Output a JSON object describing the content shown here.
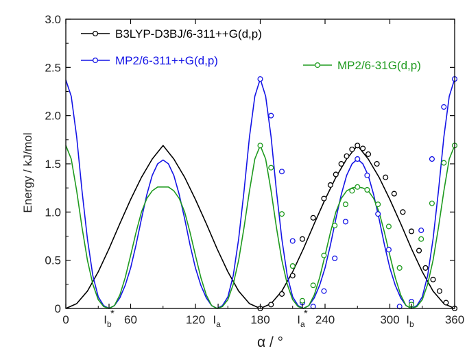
{
  "chart_data": {
    "type": "line",
    "xlabel": "α / °",
    "ylabel": "Energy / kJ/mol",
    "xlim": [
      0,
      360
    ],
    "ylim": [
      0,
      3.0
    ],
    "x_ticks": [
      "0",
      "60",
      "120",
      "180",
      "240",
      "300",
      "360"
    ],
    "x_tick_values": [
      0,
      60,
      120,
      180,
      240,
      300,
      360
    ],
    "y_ticks": [
      "0",
      "0.5",
      "1.0",
      "1.5",
      "2.0",
      "2.5",
      "3.0"
    ],
    "y_tick_values": [
      0,
      0.5,
      1.0,
      1.5,
      2.0,
      2.5,
      3.0
    ],
    "x_annotations": [
      {
        "label": "I",
        "sub": "b",
        "sup": "*",
        "x": 40
      },
      {
        "label": "I",
        "sub": "a",
        "sup": "",
        "x": 141
      },
      {
        "label": "I",
        "sub": "a",
        "sup": "*",
        "x": 219
      },
      {
        "label": "I",
        "sub": "b",
        "sup": "",
        "x": 320
      }
    ],
    "legend_position": "top-left",
    "grid": false,
    "series": [
      {
        "name": "B3LYP-D3BJ/6-311++G(d,p)",
        "color": "#000000",
        "curve": [
          [
            0,
            0
          ],
          [
            10,
            0.05
          ],
          [
            20,
            0.18
          ],
          [
            30,
            0.38
          ],
          [
            40,
            0.62
          ],
          [
            50,
            0.88
          ],
          [
            60,
            1.13
          ],
          [
            70,
            1.36
          ],
          [
            80,
            1.55
          ],
          [
            90,
            1.69
          ],
          [
            100,
            1.55
          ],
          [
            110,
            1.36
          ],
          [
            120,
            1.13
          ],
          [
            130,
            0.88
          ],
          [
            140,
            0.62
          ],
          [
            150,
            0.38
          ],
          [
            160,
            0.18
          ],
          [
            170,
            0.05
          ],
          [
            180,
            0
          ],
          [
            190,
            0.05
          ],
          [
            200,
            0.18
          ],
          [
            210,
            0.38
          ],
          [
            220,
            0.62
          ],
          [
            230,
            0.88
          ],
          [
            240,
            1.13
          ],
          [
            250,
            1.36
          ],
          [
            260,
            1.55
          ],
          [
            270,
            1.69
          ],
          [
            280,
            1.55
          ],
          [
            290,
            1.36
          ],
          [
            300,
            1.13
          ],
          [
            310,
            0.88
          ],
          [
            320,
            0.62
          ],
          [
            330,
            0.38
          ],
          [
            340,
            0.18
          ],
          [
            350,
            0.05
          ],
          [
            360,
            0
          ]
        ],
        "points": [
          [
            180,
            0
          ],
          [
            190,
            0.04
          ],
          [
            200,
            0.15
          ],
          [
            210,
            0.34
          ],
          [
            219,
            0.72
          ],
          [
            229,
            0.94
          ],
          [
            239,
            1.14
          ],
          [
            245,
            1.28
          ],
          [
            250,
            1.39
          ],
          [
            255,
            1.5
          ],
          [
            260,
            1.58
          ],
          [
            265,
            1.65
          ],
          [
            270,
            1.69
          ],
          [
            275,
            1.66
          ],
          [
            280,
            1.6
          ],
          [
            288,
            1.5
          ],
          [
            296,
            1.36
          ],
          [
            304,
            1.19
          ],
          [
            312,
            1.0
          ],
          [
            320,
            0.8
          ],
          [
            327,
            0.6
          ],
          [
            333,
            0.42
          ],
          [
            340,
            0.3
          ],
          [
            346,
            0.18
          ],
          [
            352,
            0.06
          ],
          [
            360,
            0
          ]
        ]
      },
      {
        "name": "MP2/6-311++G(d,p)",
        "color": "#1414e6",
        "curve": [
          [
            0,
            2.37
          ],
          [
            5,
            2.2
          ],
          [
            10,
            1.78
          ],
          [
            15,
            1.22
          ],
          [
            20,
            0.72
          ],
          [
            25,
            0.34
          ],
          [
            30,
            0.12
          ],
          [
            35,
            0.03
          ],
          [
            40,
            0
          ],
          [
            45,
            0.03
          ],
          [
            50,
            0.11
          ],
          [
            55,
            0.24
          ],
          [
            60,
            0.42
          ],
          [
            65,
            0.66
          ],
          [
            70,
            0.93
          ],
          [
            75,
            1.18
          ],
          [
            80,
            1.38
          ],
          [
            85,
            1.5
          ],
          [
            90,
            1.54
          ],
          [
            95,
            1.5
          ],
          [
            100,
            1.38
          ],
          [
            105,
            1.18
          ],
          [
            110,
            0.93
          ],
          [
            115,
            0.66
          ],
          [
            120,
            0.42
          ],
          [
            125,
            0.24
          ],
          [
            130,
            0.11
          ],
          [
            135,
            0.03
          ],
          [
            140,
            0
          ],
          [
            145,
            0.03
          ],
          [
            150,
            0.12
          ],
          [
            155,
            0.34
          ],
          [
            160,
            0.72
          ],
          [
            165,
            1.22
          ],
          [
            170,
            1.78
          ],
          [
            175,
            2.2
          ],
          [
            180,
            2.38
          ],
          [
            185,
            2.2
          ],
          [
            190,
            1.78
          ],
          [
            195,
            1.22
          ],
          [
            200,
            0.72
          ],
          [
            205,
            0.34
          ],
          [
            210,
            0.12
          ],
          [
            215,
            0.03
          ],
          [
            220,
            0
          ],
          [
            225,
            0.03
          ],
          [
            230,
            0.11
          ],
          [
            235,
            0.24
          ],
          [
            240,
            0.42
          ],
          [
            245,
            0.66
          ],
          [
            250,
            0.93
          ],
          [
            255,
            1.18
          ],
          [
            260,
            1.38
          ],
          [
            265,
            1.5
          ],
          [
            270,
            1.55
          ],
          [
            275,
            1.5
          ],
          [
            280,
            1.38
          ],
          [
            285,
            1.18
          ],
          [
            290,
            0.93
          ],
          [
            295,
            0.66
          ],
          [
            300,
            0.42
          ],
          [
            305,
            0.24
          ],
          [
            310,
            0.11
          ],
          [
            315,
            0.03
          ],
          [
            320,
            0
          ],
          [
            325,
            0.03
          ],
          [
            330,
            0.12
          ],
          [
            335,
            0.34
          ],
          [
            340,
            0.72
          ],
          [
            345,
            1.22
          ],
          [
            350,
            1.78
          ],
          [
            355,
            2.2
          ],
          [
            360,
            2.38
          ]
        ],
        "points": [
          [
            180,
            2.38
          ],
          [
            190,
            2.0
          ],
          [
            200,
            1.42
          ],
          [
            210,
            0.7
          ],
          [
            219,
            0.06
          ],
          [
            229,
            0.02
          ],
          [
            239,
            0.18
          ],
          [
            249,
            0.52
          ],
          [
            259,
            0.9
          ],
          [
            270,
            1.55
          ],
          [
            279,
            1.38
          ],
          [
            289,
            0.98
          ],
          [
            299,
            0.61
          ],
          [
            309,
            0.02
          ],
          [
            320,
            0.07
          ],
          [
            329,
            0.81
          ],
          [
            339,
            1.55
          ],
          [
            350,
            2.09
          ],
          [
            360,
            2.38
          ]
        ]
      },
      {
        "name": "MP2/6-31G(d,p)",
        "color": "#1e9a1e",
        "curve": [
          [
            0,
            1.69
          ],
          [
            5,
            1.55
          ],
          [
            10,
            1.22
          ],
          [
            15,
            0.84
          ],
          [
            20,
            0.5
          ],
          [
            25,
            0.25
          ],
          [
            30,
            0.09
          ],
          [
            35,
            0.02
          ],
          [
            40,
            0
          ],
          [
            45,
            0.03
          ],
          [
            50,
            0.14
          ],
          [
            55,
            0.32
          ],
          [
            60,
            0.55
          ],
          [
            65,
            0.79
          ],
          [
            70,
            1.0
          ],
          [
            75,
            1.14
          ],
          [
            80,
            1.22
          ],
          [
            85,
            1.26
          ],
          [
            90,
            1.26
          ],
          [
            95,
            1.26
          ],
          [
            100,
            1.22
          ],
          [
            105,
            1.14
          ],
          [
            110,
            1.0
          ],
          [
            115,
            0.79
          ],
          [
            120,
            0.55
          ],
          [
            125,
            0.32
          ],
          [
            130,
            0.14
          ],
          [
            135,
            0.03
          ],
          [
            140,
            0
          ],
          [
            145,
            0.02
          ],
          [
            150,
            0.09
          ],
          [
            155,
            0.25
          ],
          [
            160,
            0.5
          ],
          [
            165,
            0.84
          ],
          [
            170,
            1.22
          ],
          [
            175,
            1.55
          ],
          [
            180,
            1.69
          ],
          [
            185,
            1.55
          ],
          [
            190,
            1.22
          ],
          [
            195,
            0.84
          ],
          [
            200,
            0.5
          ],
          [
            205,
            0.25
          ],
          [
            210,
            0.09
          ],
          [
            215,
            0.02
          ],
          [
            220,
            0
          ],
          [
            225,
            0.03
          ],
          [
            230,
            0.14
          ],
          [
            235,
            0.32
          ],
          [
            240,
            0.55
          ],
          [
            245,
            0.79
          ],
          [
            250,
            1.0
          ],
          [
            255,
            1.14
          ],
          [
            260,
            1.22
          ],
          [
            265,
            1.25
          ],
          [
            270,
            1.26
          ],
          [
            275,
            1.25
          ],
          [
            280,
            1.22
          ],
          [
            285,
            1.14
          ],
          [
            290,
            1.0
          ],
          [
            295,
            0.79
          ],
          [
            300,
            0.55
          ],
          [
            305,
            0.32
          ],
          [
            310,
            0.14
          ],
          [
            315,
            0.03
          ],
          [
            320,
            0
          ],
          [
            325,
            0.02
          ],
          [
            330,
            0.09
          ],
          [
            335,
            0.25
          ],
          [
            340,
            0.5
          ],
          [
            345,
            0.84
          ],
          [
            350,
            1.22
          ],
          [
            355,
            1.55
          ],
          [
            360,
            1.69
          ]
        ],
        "points": [
          [
            180,
            1.69
          ],
          [
            190,
            1.46
          ],
          [
            200,
            0.98
          ],
          [
            210,
            0.44
          ],
          [
            219,
            0.08
          ],
          [
            229,
            0.24
          ],
          [
            239,
            0.55
          ],
          [
            249,
            0.86
          ],
          [
            259,
            1.08
          ],
          [
            265,
            1.22
          ],
          [
            270,
            1.26
          ],
          [
            279,
            1.23
          ],
          [
            289,
            1.08
          ],
          [
            299,
            0.85
          ],
          [
            309,
            0.42
          ],
          [
            320,
            0.04
          ],
          [
            329,
            0.72
          ],
          [
            339,
            1.09
          ],
          [
            350,
            1.51
          ],
          [
            360,
            1.69
          ]
        ]
      }
    ]
  }
}
